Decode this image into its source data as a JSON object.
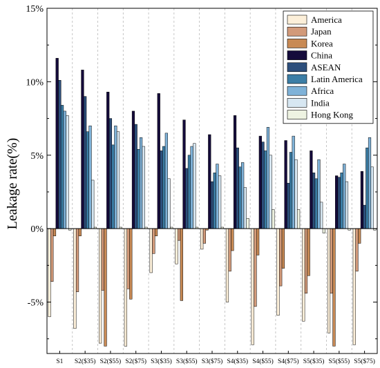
{
  "chart_data": {
    "type": "bar",
    "title": "",
    "xlabel": "",
    "ylabel": "Leakage rate(%)",
    "ylim": [
      -8.5,
      15
    ],
    "yticks": [
      -5,
      0,
      5,
      10,
      15
    ],
    "ytick_labels": [
      "-5%",
      "0%",
      "5%",
      "10%",
      "15%"
    ],
    "grid": "vertical dashed separators between scenarios",
    "legend_position": "top-right",
    "categories": [
      "S1",
      "S2($35)",
      "S2($55)",
      "S2($75)",
      "S3($35)",
      "S3($55)",
      "S3($75)",
      "S4($35)",
      "S4($55)",
      "S4($75)",
      "S5($35)",
      "S5($55)",
      "S5($75)"
    ],
    "series": [
      {
        "name": "America",
        "color": "#fcefd9",
        "values": [
          -6.0,
          -6.8,
          -7.8,
          -8.0,
          -3.0,
          -2.4,
          -1.4,
          -5.0,
          -7.9,
          -5.9,
          -6.3,
          -7.1,
          -7.9
        ]
      },
      {
        "name": "Japan",
        "color": "#d29a7a",
        "values": [
          -3.6,
          -4.3,
          -4.2,
          -4.1,
          -1.7,
          -0.8,
          -1.0,
          -2.9,
          -5.3,
          -3.9,
          -4.4,
          -4.4,
          -2.9
        ]
      },
      {
        "name": "Korea",
        "color": "#c88a55",
        "values": [
          -0.5,
          -0.5,
          -8.0,
          -4.8,
          -0.5,
          -4.9,
          -0.1,
          -1.5,
          -1.8,
          -2.7,
          -3.2,
          -8.0,
          -1.0
        ]
      },
      {
        "name": "China",
        "color": "#150b3b",
        "values": [
          11.6,
          10.8,
          9.3,
          8.0,
          9.2,
          7.4,
          6.4,
          7.7,
          6.3,
          6.0,
          5.3,
          3.6,
          3.9
        ]
      },
      {
        "name": "ASEAN",
        "color": "#2d4f7c",
        "values": [
          10.1,
          9.0,
          7.5,
          7.1,
          5.3,
          4.1,
          3.2,
          5.5,
          5.9,
          3.1,
          3.8,
          3.5,
          1.6
        ]
      },
      {
        "name": "Latin America",
        "color": "#3c7ea6",
        "values": [
          8.4,
          6.6,
          5.7,
          5.4,
          5.6,
          5.0,
          3.8,
          4.2,
          5.3,
          5.2,
          3.4,
          3.8,
          5.5
        ]
      },
      {
        "name": "Africa",
        "color": "#7fb2d8",
        "values": [
          8.0,
          7.0,
          7.0,
          6.2,
          6.5,
          5.6,
          4.4,
          4.5,
          6.9,
          6.3,
          4.7,
          4.4,
          6.2
        ]
      },
      {
        "name": "India",
        "color": "#d7e7f2",
        "values": [
          7.7,
          3.3,
          6.6,
          5.6,
          3.4,
          5.8,
          3.6,
          2.8,
          5.0,
          4.7,
          1.8,
          3.2,
          4.2
        ]
      },
      {
        "name": "Hong Kong",
        "color": "#eef3e2",
        "values": [
          -0.1,
          0.1,
          0.1,
          0.1,
          0.1,
          0.1,
          0.1,
          0.7,
          1.3,
          1.3,
          -0.3,
          -0.1,
          -0.1
        ]
      }
    ]
  }
}
